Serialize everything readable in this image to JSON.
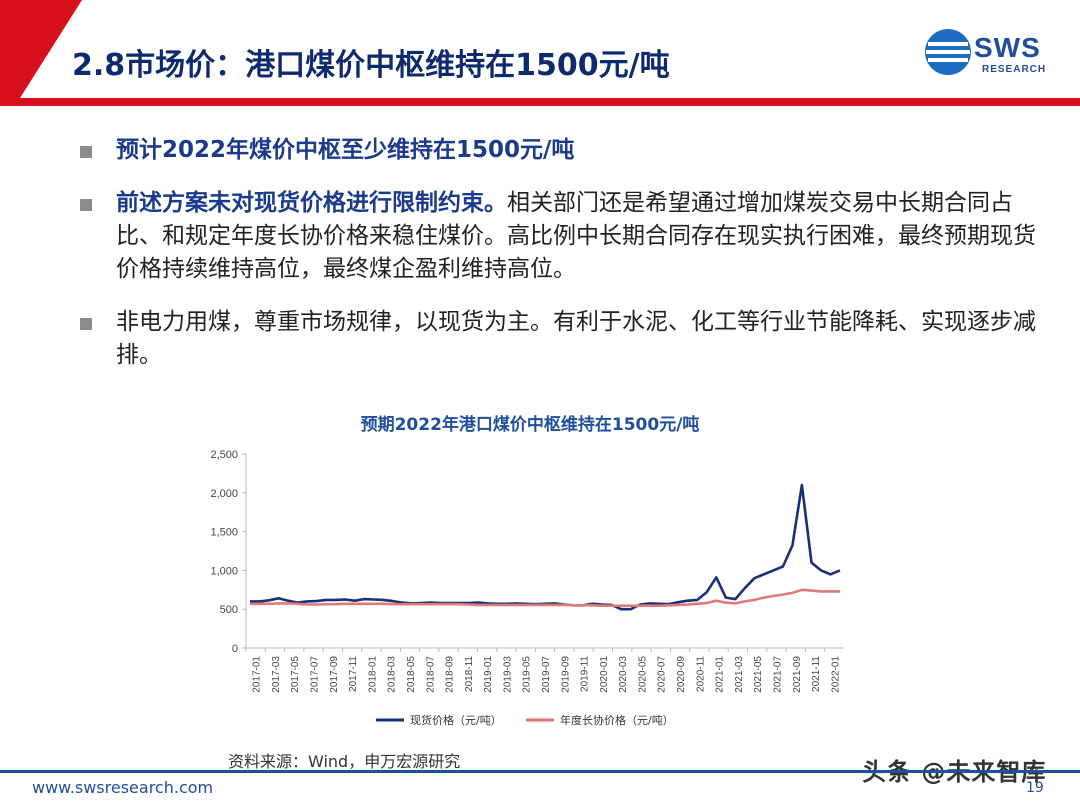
{
  "slide": {
    "title": "2.8市场价：港口煤价中枢维持在1500元/吨",
    "logo": {
      "name": "SWS",
      "sub": "RESEARCH"
    },
    "bullets": [
      {
        "emphasis": "预计2022年煤价中枢至少维持在1500元/吨",
        "text": ""
      },
      {
        "emphasis": "前述方案未对现货价格进行限制约束。",
        "text": "相关部门还是希望通过增加煤炭交易中长期合同占比、和规定年度长协价格来稳住煤价。高比例中长期合同存在现实执行困难，最终预期现货价格持续维持高位，最终煤企盈利维持高位。"
      },
      {
        "emphasis": "",
        "text": "非电力用煤，尊重市场规律，以现货为主。有利于水泥、化工等行业节能降耗、实现逐步减排。"
      }
    ],
    "source": "资料来源：Wind，申万宏源研究",
    "footer_url": "www.swsresearch.com",
    "page_number": "19",
    "watermark": "头条 @未来智库"
  },
  "colors": {
    "title_red": "#d7101c",
    "navy": "#1f4f9c",
    "spot": "#1a2f7a",
    "contract": "#e07a7a"
  },
  "chart_data": {
    "type": "line",
    "title": "预期2022年港口煤价中枢维持在1500元/吨",
    "x_labels": [
      "2017-01",
      "2017-03",
      "2017-05",
      "2017-07",
      "2017-09",
      "2017-11",
      "2018-01",
      "2018-03",
      "2018-05",
      "2018-07",
      "2018-09",
      "2018-11",
      "2019-01",
      "2019-03",
      "2019-05",
      "2019-07",
      "2019-09",
      "2019-11",
      "2020-01",
      "2020-03",
      "2020-05",
      "2020-07",
      "2020-09",
      "2020-11",
      "2021-01",
      "2021-03",
      "2021-05",
      "2021-07",
      "2021-09",
      "2021-11",
      "2022-01"
    ],
    "y_ticks": [
      "0",
      "500",
      "1,000",
      "1,500",
      "2,000",
      "2,500"
    ],
    "ylim": [
      0,
      2500
    ],
    "grid": false,
    "legend_position": "bottom",
    "series": [
      {
        "name": "现货价格（元/吨）",
        "color": "#1a2f7a",
        "values": [
          600,
          600,
          615,
          640,
          610,
          585,
          600,
          605,
          620,
          620,
          625,
          610,
          630,
          625,
          620,
          605,
          585,
          575,
          580,
          585,
          580,
          580,
          580,
          580,
          585,
          575,
          570,
          570,
          575,
          570,
          565,
          570,
          575,
          560,
          550,
          550,
          570,
          560,
          555,
          500,
          500,
          560,
          575,
          570,
          565,
          590,
          610,
          620,
          720,
          910,
          650,
          630,
          770,
          900,
          950,
          1000,
          1050,
          1320,
          2100,
          1100,
          1000,
          950,
          1000
        ]
      },
      {
        "name": "年度长协价格（元/吨）",
        "color": "#e07a7a",
        "values": [
          570,
          570,
          570,
          575,
          575,
          570,
          560,
          560,
          565,
          565,
          570,
          570,
          570,
          570,
          570,
          565,
          565,
          565,
          565,
          565,
          565,
          565,
          565,
          560,
          555,
          555,
          555,
          555,
          555,
          555,
          555,
          555,
          555,
          555,
          550,
          550,
          550,
          545,
          545,
          545,
          545,
          545,
          545,
          545,
          550,
          555,
          560,
          570,
          580,
          610,
          585,
          575,
          600,
          620,
          650,
          670,
          690,
          710,
          750,
          740,
          730,
          730,
          730
        ]
      }
    ]
  }
}
